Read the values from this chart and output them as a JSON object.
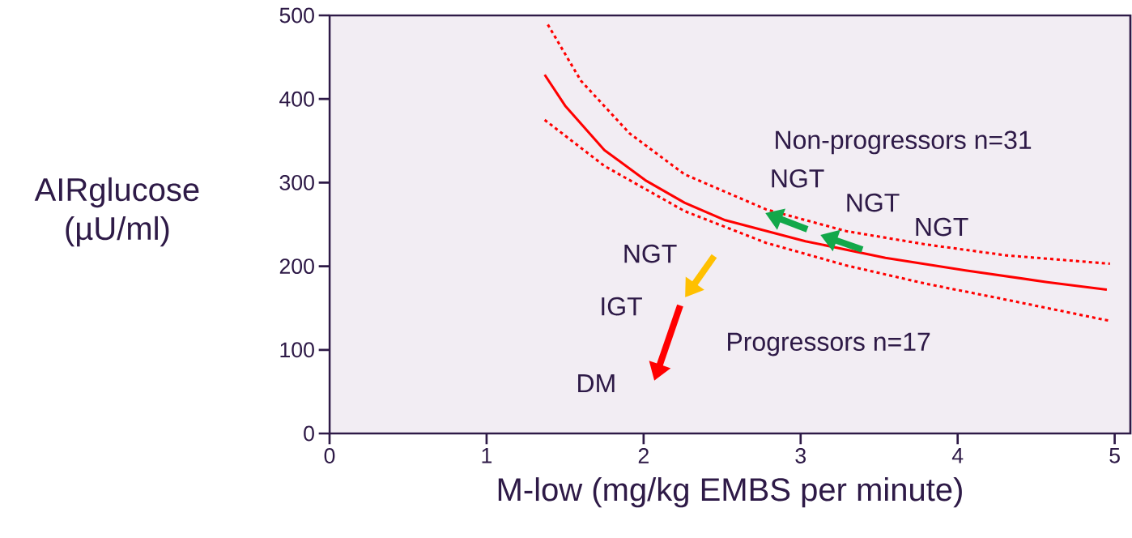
{
  "chart_data": {
    "type": "line",
    "xlabel": "M-low (mg/kg EMBS per minute)",
    "ylabel": "AIRglucose (µU/ml)",
    "xlim": [
      0,
      5.1
    ],
    "ylim": [
      0,
      500
    ],
    "xticks": [
      0,
      1,
      2,
      3,
      4,
      5
    ],
    "yticks": [
      0,
      100,
      200,
      300,
      400,
      500
    ],
    "grid": false,
    "marker": "none",
    "series": [
      {
        "color": "#ff0000",
        "line_style": "solid",
        "x": [
          1.37,
          1.5,
          1.75,
          2.01,
          2.26,
          2.52,
          3.03,
          3.54,
          4.05,
          4.57,
          4.95
        ],
        "values": [
          429,
          392,
          339,
          303,
          276,
          255,
          230,
          210,
          195,
          181,
          172
        ]
      },
      {
        "color": "#ff0000",
        "line_style": "dotted",
        "x": [
          1.39,
          1.6,
          1.91,
          2.26,
          2.78,
          3.29,
          3.8,
          4.31,
          4.97
        ],
        "values": [
          489,
          422,
          359,
          310,
          268,
          242,
          226,
          213,
          203
        ]
      },
      {
        "color": "#ff0000",
        "line_style": "dotted",
        "x": [
          1.37,
          1.75,
          2.26,
          2.78,
          3.29,
          3.8,
          4.31,
          4.96
        ],
        "values": [
          375,
          320,
          266,
          228,
          201,
          179,
          160,
          135
        ]
      }
    ],
    "annotations": [
      "Non-progressors n=31",
      "NGT",
      "NGT",
      "NGT",
      "NGT",
      "IGT",
      "Progressors n=17",
      "DM"
    ]
  }
}
